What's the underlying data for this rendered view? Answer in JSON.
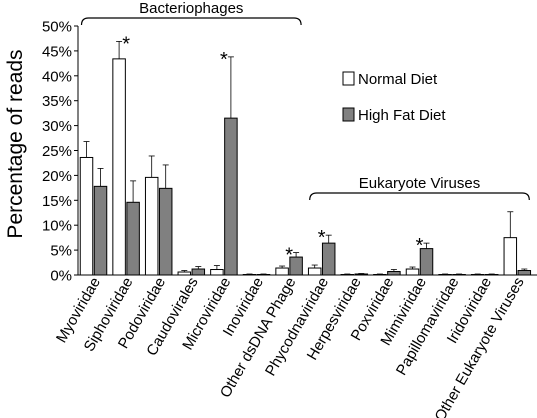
{
  "chart_data": {
    "type": "bar",
    "ylabel": "Percentage of reads",
    "ylim": [
      0,
      50
    ],
    "yticks": [
      0,
      5,
      10,
      15,
      20,
      25,
      30,
      35,
      40,
      45,
      50
    ],
    "ytick_labels": [
      "0%",
      "5%",
      "10%",
      "15%",
      "20%",
      "25%",
      "30%",
      "35%",
      "40%",
      "45%",
      "50%"
    ],
    "grid": false,
    "legend_position": "right",
    "categories": [
      "Myoviridae",
      "Siphoviridae",
      "Podoviridae",
      "Caudovirales",
      "Microviridae",
      "Inoviridae",
      "Other dsDNA Phage",
      "Phycodnaviridae",
      "Herpesviridae",
      "Poxviridae",
      "Mimiviridae",
      "Papillomaviridae",
      "Iridoviridae",
      "Other Eukaryote Viruses"
    ],
    "series": [
      {
        "name": "Normal Diet",
        "color": "#ffffff",
        "values": [
          23.6,
          43.4,
          19.6,
          0.6,
          1.1,
          0.1,
          1.4,
          1.4,
          0.1,
          0.1,
          1.2,
          0.1,
          0.1,
          7.5
        ],
        "errors": [
          3.2,
          3.5,
          4.3,
          0.3,
          0.8,
          0.1,
          0.4,
          0.6,
          0.1,
          0.1,
          0.4,
          0.1,
          0.1,
          5.2
        ]
      },
      {
        "name": "High Fat Diet",
        "color": "#808080",
        "values": [
          17.8,
          14.6,
          17.4,
          1.2,
          31.5,
          0.1,
          3.6,
          6.4,
          0.2,
          0.7,
          5.3,
          0.1,
          0.1,
          0.9
        ],
        "errors": [
          3.6,
          4.3,
          4.7,
          0.5,
          12.3,
          0.1,
          0.9,
          1.6,
          0.1,
          0.4,
          1.1,
          0.1,
          0.1,
          0.3
        ]
      }
    ],
    "significance_marker": "*",
    "significant_categories": [
      "Siphoviridae",
      "Microviridae",
      "Other dsDNA Phage",
      "Phycodnaviridae",
      "Mimiviridae"
    ],
    "annotations": {
      "bacteriophages": {
        "label": "Bacteriophages",
        "from": "Myoviridae",
        "to": "Other dsDNA Phage"
      },
      "eukaryote": {
        "label": "Eukaryote Viruses",
        "from": "Phycodnaviridae",
        "to": "Other Eukaryote Viruses"
      }
    }
  }
}
